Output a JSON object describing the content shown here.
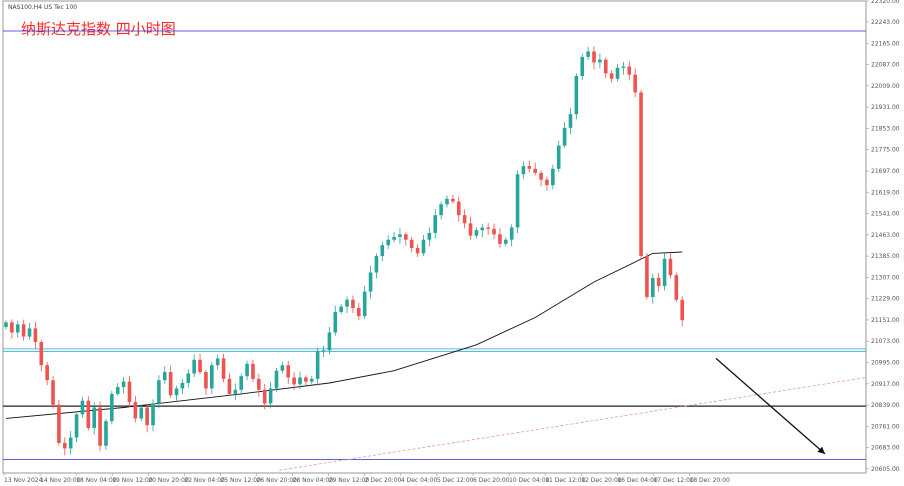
{
  "header": {
    "symbol_line": "NAS100.H4  US Tec 100",
    "annotation": "纳斯达克指数 四小时图"
  },
  "colors": {
    "bull": "#26a69a",
    "bear": "#ef5350",
    "annotation": "#ff2a2a",
    "ma": "#111111",
    "blue_line": "#2b2bd6",
    "cyan_line": "#2aa3c9",
    "support_line": "#222222"
  },
  "chart_data": {
    "type": "candlestick",
    "title": "纳斯达克指数 四小时图",
    "ylim": [
      20590,
      22320
    ],
    "y_ticks": [
      22320,
      22243,
      22165,
      22087,
      22009,
      21931,
      21853,
      21775,
      21697,
      21619,
      21541,
      21463,
      21385,
      21307,
      21229,
      21151,
      21073,
      20995,
      20917,
      20839,
      20761,
      20683,
      20605
    ],
    "x_ticks": [
      "13 Nov 2024",
      "14 Nov 20:00",
      "18 Nov 04:00",
      "19 Nov 12:00",
      "20 Nov 20:00",
      "22 Nov 04:00",
      "25 Nov 12:00",
      "26 Nov 20:00",
      "28 Nov 04:00",
      "29 Nov 12:00",
      "2 Dec 20:00",
      "4 Dec 04:00",
      "5 Dec 12:00",
      "6 Dec 20:00",
      "10 Dec 04:00",
      "11 Dec 12:00",
      "12 Dec 20:00",
      "16 Dec 04:00",
      "17 Dec 12:00",
      "18 Dec 20:00"
    ],
    "close_values": [
      21142,
      21105,
      21135,
      21090,
      21120,
      21070,
      20985,
      20930,
      20840,
      20700,
      20680,
      20720,
      20805,
      20855,
      20755,
      20830,
      20690,
      20780,
      20880,
      20905,
      20925,
      20850,
      20790,
      20830,
      20765,
      20845,
      20930,
      20960,
      20875,
      20900,
      20920,
      20955,
      21005,
      20960,
      20900,
      20985,
      21010,
      20935,
      20880,
      20895,
      20945,
      20990,
      20935,
      20895,
      20845,
      20900,
      20965,
      20985,
      20940,
      20915,
      20940,
      20925,
      20935,
      21035,
      21040,
      21105,
      21180,
      21200,
      21225,
      21195,
      21165,
      21255,
      21325,
      21385,
      21425,
      21445,
      21455,
      21465,
      21445,
      21415,
      21395,
      21445,
      21470,
      21535,
      21575,
      21595,
      21585,
      21535,
      21505,
      21460,
      21480,
      21490,
      21485,
      21465,
      21430,
      21445,
      21490,
      21685,
      21715,
      21705,
      21690,
      21665,
      21645,
      21705,
      21790,
      21855,
      21905,
      22045,
      22115,
      22135,
      22095,
      22105,
      22055,
      22035,
      22075,
      22080,
      22050,
      21985,
      21385,
      21235,
      21305,
      21275,
      21375,
      21315,
      21225,
      21150
    ],
    "open_value_first": 21125,
    "ma_points": [
      [
        0,
        20790
      ],
      [
        20,
        20830
      ],
      [
        40,
        20880
      ],
      [
        55,
        20920
      ],
      [
        66,
        20965
      ],
      [
        80,
        21060
      ],
      [
        90,
        21160
      ],
      [
        100,
        21290
      ],
      [
        110,
        21395
      ],
      [
        115,
        21400
      ]
    ],
    "levels": [
      {
        "name": "upper-blue",
        "value": 22210,
        "label": "",
        "color": "#2b2bd6"
      },
      {
        "name": "cyan-1",
        "value": 21045,
        "label": "",
        "color": "#2aa3c9"
      },
      {
        "name": "cyan-2",
        "value": 21036,
        "label": "",
        "color": "#2aa3c9"
      },
      {
        "name": "support",
        "value": 20835,
        "label": "",
        "color": "#222222"
      },
      {
        "name": "lower-blue",
        "value": 20640,
        "label": "",
        "color": "#2b2bd6"
      }
    ],
    "trendline": {
      "from": [
        0.32,
        20600
      ],
      "to": [
        1.0,
        20940
      ]
    },
    "arrow_from_index": 119,
    "arrow": {
      "from_value": 21010,
      "to_value": 20660
    }
  }
}
